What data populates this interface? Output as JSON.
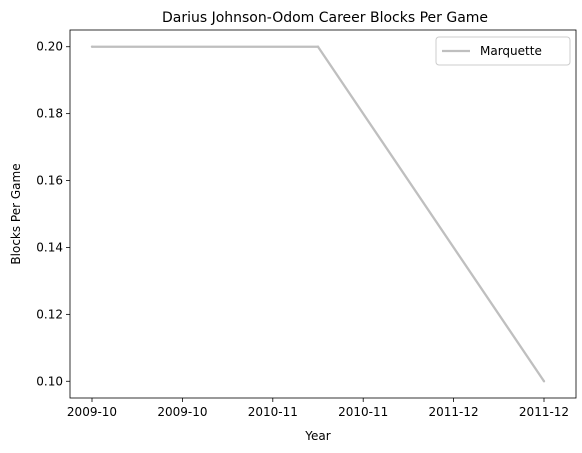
{
  "chart_data": {
    "type": "line",
    "title": "Darius Johnson-Odom Career Blocks Per Game",
    "xlabel": "Year",
    "ylabel": "Blocks Per Game",
    "x_tick_labels": [
      "2009-10",
      "2009-10",
      "2010-11",
      "2010-11",
      "2011-12",
      "2011-12"
    ],
    "y_ticks": [
      "0.10",
      "0.12",
      "0.14",
      "0.16",
      "0.18",
      "0.20"
    ],
    "x": [
      "2009-10",
      "2010-11",
      "2011-12"
    ],
    "series": [
      {
        "name": "Marquette",
        "values": [
          0.2,
          0.2,
          0.1
        ],
        "color": "#bfbfbf"
      }
    ],
    "ylim": [
      0.095,
      0.205
    ],
    "grid": false,
    "legend_position": "top-right"
  }
}
